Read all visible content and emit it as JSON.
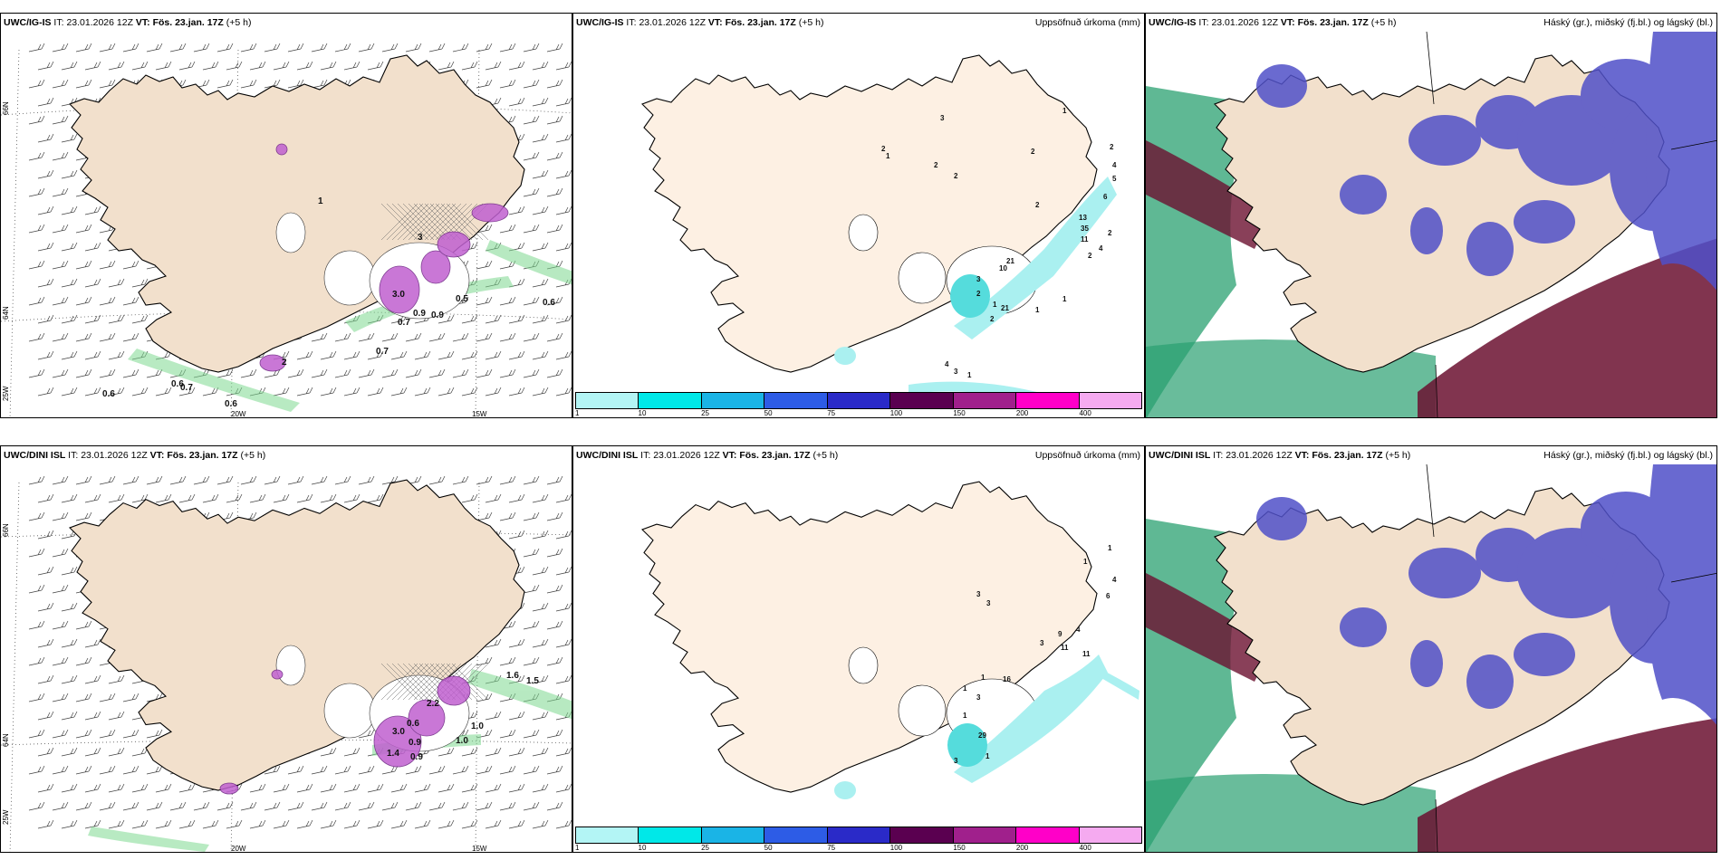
{
  "rows": [
    {
      "model": "UWC/IG-IS",
      "it_label": "IT:",
      "it_value": "23.01.2026 12Z",
      "vt_label": "VT:",
      "vt_value": "Fös. 23.jan. 17Z",
      "lead": "(+5 h)",
      "wind_labels": [
        "3.0",
        "0.9",
        "0.5",
        "0.9",
        "0.7",
        "0.7",
        "0.6",
        "0.6",
        "0.7",
        "0.6",
        "0.6",
        "2",
        "1",
        "3"
      ],
      "precip_labels": [
        "1",
        "2",
        "4",
        "5",
        "6",
        "13",
        "35",
        "11",
        "4",
        "2",
        "21",
        "10",
        "3",
        "2",
        "1",
        "1",
        "1",
        "2",
        "3",
        "2",
        "1",
        "2",
        "2",
        "2",
        "2",
        "2",
        "21",
        "4",
        "3",
        "1"
      ]
    },
    {
      "model": "UWC/DINI ISL",
      "it_label": "IT:",
      "it_value": "23.01.2026 12Z",
      "vt_label": "VT:",
      "vt_value": "Fös. 23.jan. 17Z",
      "lead": "(+5 h)",
      "wind_labels": [
        "1.6",
        "1.5",
        "0.6",
        "2.2",
        "1.0",
        "3.0",
        "1.0",
        "0.9",
        "1.4",
        "0.9"
      ],
      "precip_labels": [
        "1",
        "1",
        "4",
        "6",
        "3",
        "3",
        "4",
        "9",
        "11",
        "11",
        "3",
        "16",
        "1",
        "1",
        "3",
        "1",
        "29",
        "1",
        "3"
      ]
    }
  ],
  "titles": {
    "precip": "Uppsöfnuð úrkoma (mm)",
    "cloud": "Háský (gr.), miðský (fj.bl.) og lágský (bl.)"
  },
  "axis": {
    "lat_top": "66N",
    "lat_bottom": "64N",
    "lat_25w": "25W",
    "lon_20w": "20W",
    "lon_15w": "15W"
  },
  "legend": {
    "labels": [
      "1",
      "10",
      "25",
      "50",
      "75",
      "100",
      "150",
      "200",
      "400"
    ],
    "colors": [
      "#b3f5f5",
      "#00e8e8",
      "#1ab4e6",
      "#2d5ce6",
      "#2a2ac8",
      "#5a0050",
      "#a0208c",
      "#ff00c8",
      "#f5aaf0"
    ]
  },
  "colors": {
    "land": "#f2e0cc",
    "land_precip": "#fdf0e3",
    "coast": "#000000",
    "cloud_high": "#6b1030",
    "cloud_mid": "#5050c8",
    "cloud_low": "#2aa070"
  }
}
